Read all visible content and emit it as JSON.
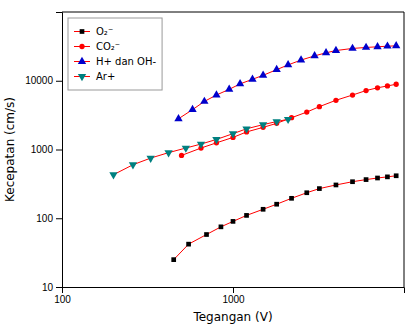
{
  "chart_data": {
    "type": "line",
    "xlabel": "Tegangan (V)",
    "ylabel": "Kecepatan (cm/s)",
    "log": true,
    "grid": false,
    "legend": "upper left",
    "color": "#ff0000",
    "xlim": [
      100,
      10000
    ],
    "ylim": [
      10,
      100000
    ],
    "xticks": [
      100,
      1000
    ],
    "yticks": [
      10,
      100,
      1000,
      10000
    ],
    "series": [
      {
        "name": "O₂⁻",
        "color": "#000000",
        "marker": "square",
        "x": [
          450,
          550,
          700,
          850,
          1000,
          1200,
          1500,
          1800,
          2200,
          2700,
          3200,
          4000,
          5000,
          6000,
          7000,
          8000,
          9000
        ],
        "values": [
          25,
          42,
          58,
          75,
          90,
          110,
          135,
          160,
          195,
          235,
          270,
          305,
          340,
          365,
          385,
          400,
          415
        ]
      },
      {
        "name": "CO₂⁻",
        "color": "#ff0000",
        "marker": "circle",
        "x": [
          500,
          650,
          800,
          1000,
          1200,
          1500,
          1800,
          2200,
          2700,
          3200,
          4000,
          5000,
          6000,
          7000,
          8000,
          9000
        ],
        "values": [
          820,
          1050,
          1250,
          1500,
          1800,
          2100,
          2400,
          2900,
          3500,
          4200,
          5200,
          6200,
          7200,
          7900,
          8400,
          8900
        ]
      },
      {
        "name": "H+ dan OH-",
        "color": "#0000cc",
        "marker": "triangle-up",
        "x": [
          480,
          580,
          680,
          800,
          950,
          1100,
          1300,
          1500,
          1800,
          2100,
          2500,
          3000,
          3500,
          4000,
          5000,
          6000,
          7000,
          8000,
          9000
        ],
        "values": [
          2800,
          3800,
          5000,
          6200,
          7500,
          9000,
          10500,
          12000,
          14500,
          17000,
          20000,
          23000,
          25500,
          27500,
          29500,
          30500,
          31200,
          31800,
          32200
        ]
      },
      {
        "name": "Ar+",
        "color": "#008080",
        "marker": "triangle-down",
        "x": [
          200,
          260,
          330,
          420,
          530,
          650,
          800,
          1000,
          1200,
          1500,
          1800,
          2100
        ],
        "values": [
          430,
          600,
          750,
          900,
          1050,
          1200,
          1400,
          1700,
          2000,
          2300,
          2550,
          2750
        ]
      }
    ]
  }
}
